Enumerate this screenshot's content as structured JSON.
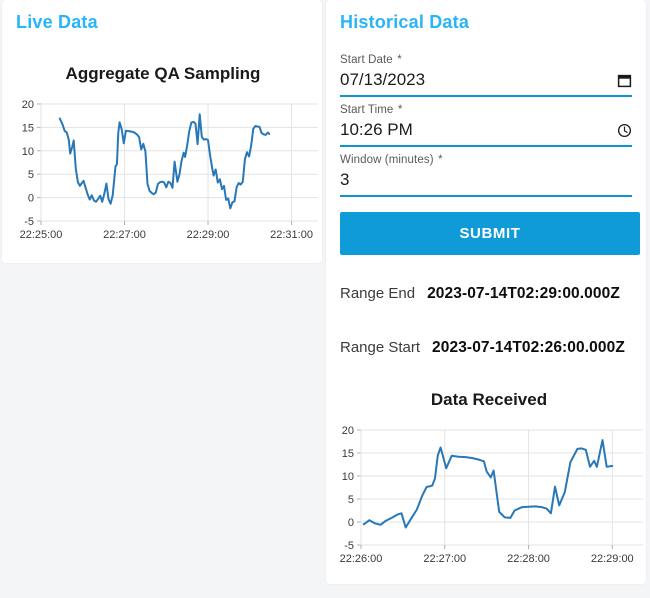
{
  "colors": {
    "accent": "#29b5f6",
    "primary_button": "#0f9bd7",
    "input_underline": "#0f93d2",
    "line": "#2878b8",
    "grid": "#e3e3e3",
    "tick": "#b0b0b0",
    "tick_label": "#3a3a3a"
  },
  "live_panel": {
    "header": "Live Data"
  },
  "historical_panel": {
    "header": "Historical Data",
    "fields": [
      {
        "label": "Start Date",
        "required_mark": "*",
        "value": "07/13/2023",
        "icon": "calendar-icon"
      },
      {
        "label": "Start Time",
        "required_mark": "*",
        "value": "10:26 PM",
        "icon": "clock-icon"
      },
      {
        "label": "Window (minutes)",
        "required_mark": "*",
        "value": "3",
        "icon": null
      }
    ],
    "submit_label": "SUBMIT",
    "results": [
      {
        "label": "Range End",
        "value": "2023-07-14T02:29:00.000Z"
      },
      {
        "label": "Range Start",
        "value": "2023-07-14T02:26:00.000Z"
      }
    ]
  },
  "chart_data": [
    {
      "type": "line",
      "title": "Aggregate QA Sampling",
      "xlabel": "",
      "ylabel": "",
      "grid": true,
      "line_color": "#2878b8",
      "ylim": [
        -5,
        20
      ],
      "yticks": [
        20,
        15,
        10,
        5,
        0,
        -5
      ],
      "x_domain_seconds": [
        0,
        398
      ],
      "x_origin_time": "22:25:00",
      "xticks": [
        {
          "pos": 0,
          "label": "22:25:00"
        },
        {
          "pos": 120,
          "label": "22:27:00"
        },
        {
          "pos": 240,
          "label": "22:29:00"
        },
        {
          "pos": 360,
          "label": "22:31:00"
        }
      ],
      "points": [
        [
          27,
          16.9
        ],
        [
          31,
          15.6
        ],
        [
          34,
          14.2
        ],
        [
          37,
          13.9
        ],
        [
          40,
          12.3
        ],
        [
          42,
          9.4
        ],
        [
          45,
          10.9
        ],
        [
          47,
          12.2
        ],
        [
          50,
          6.2
        ],
        [
          53,
          3.3
        ],
        [
          56,
          2.5
        ],
        [
          58,
          3.0
        ],
        [
          61,
          3.6
        ],
        [
          64,
          2.2
        ],
        [
          67,
          0.7
        ],
        [
          70,
          -0.4
        ],
        [
          73,
          0.5
        ],
        [
          76,
          -0.6
        ],
        [
          79,
          -0.9
        ],
        [
          82,
          -0.3
        ],
        [
          85,
          0.4
        ],
        [
          88,
          -0.9
        ],
        [
          91,
          0.8
        ],
        [
          94,
          3.0
        ],
        [
          97,
          -0.3
        ],
        [
          100,
          -1.3
        ],
        [
          103,
          0.5
        ],
        [
          105,
          3.6
        ],
        [
          107,
          6.7
        ],
        [
          109,
          7.1
        ],
        [
          111,
          13.9
        ],
        [
          113,
          16.1
        ],
        [
          116,
          14.6
        ],
        [
          119,
          11.6
        ],
        [
          122,
          14.3
        ],
        [
          126,
          14.2
        ],
        [
          130,
          14.1
        ],
        [
          134,
          13.9
        ],
        [
          138,
          13.5
        ],
        [
          141,
          12.9
        ],
        [
          144,
          10.3
        ],
        [
          147,
          11.5
        ],
        [
          150,
          9.9
        ],
        [
          153,
          2.9
        ],
        [
          156,
          1.4
        ],
        [
          159,
          1.0
        ],
        [
          162,
          0.7
        ],
        [
          165,
          1.1
        ],
        [
          168,
          2.9
        ],
        [
          171,
          3.3
        ],
        [
          174,
          3.4
        ],
        [
          177,
          3.2
        ],
        [
          180,
          2.2
        ],
        [
          183,
          3.4
        ],
        [
          186,
          3.1
        ],
        [
          189,
          2.1
        ],
        [
          192,
          7.7
        ],
        [
          196,
          3.4
        ],
        [
          199,
          5.0
        ],
        [
          202,
          7.9
        ],
        [
          205,
          9.6
        ],
        [
          207,
          8.7
        ],
        [
          210,
          11.2
        ],
        [
          213,
          14.1
        ],
        [
          216,
          16.0
        ],
        [
          219,
          16.2
        ],
        [
          222,
          15.8
        ],
        [
          225,
          11.4
        ],
        [
          228,
          17.8
        ],
        [
          231,
          13.0
        ],
        [
          234,
          12.4
        ],
        [
          237,
          12.5
        ],
        [
          240,
          12.3
        ],
        [
          243,
          9.0
        ],
        [
          246,
          6.3
        ],
        [
          248,
          4.7
        ],
        [
          251,
          6.0
        ],
        [
          254,
          3.2
        ],
        [
          257,
          3.9
        ],
        [
          260,
          1.8
        ],
        [
          263,
          2.5
        ],
        [
          266,
          -0.5
        ],
        [
          269,
          -0.2
        ],
        [
          272,
          -2.3
        ],
        [
          275,
          -1.0
        ],
        [
          278,
          -0.8
        ],
        [
          281,
          2.2
        ],
        [
          284,
          3.1
        ],
        [
          287,
          2.8
        ],
        [
          290,
          3.4
        ],
        [
          293,
          8.2
        ],
        [
          296,
          9.7
        ],
        [
          299,
          8.8
        ],
        [
          302,
          11.2
        ],
        [
          305,
          14.7
        ],
        [
          308,
          15.3
        ],
        [
          311,
          15.2
        ],
        [
          314,
          15.1
        ],
        [
          317,
          13.8
        ],
        [
          320,
          13.5
        ],
        [
          323,
          13.4
        ],
        [
          326,
          13.9
        ],
        [
          328,
          13.6
        ]
      ]
    },
    {
      "type": "line",
      "title": "Data Received",
      "xlabel": "",
      "ylabel": "",
      "grid": true,
      "line_color": "#2878b8",
      "ylim": [
        -5,
        20
      ],
      "yticks": [
        20,
        15,
        10,
        5,
        0,
        -5
      ],
      "x_domain_seconds": [
        0,
        202
      ],
      "x_origin_time": "22:26:00",
      "xticks": [
        {
          "pos": 0,
          "label": "22:26:00"
        },
        {
          "pos": 60,
          "label": "22:27:00"
        },
        {
          "pos": 120,
          "label": "22:28:00"
        },
        {
          "pos": 180,
          "label": "22:29:00"
        }
      ],
      "points": [
        [
          2,
          -0.5
        ],
        [
          6,
          0.4
        ],
        [
          10,
          -0.3
        ],
        [
          14,
          -0.6
        ],
        [
          18,
          0.3
        ],
        [
          22,
          0.9
        ],
        [
          26,
          1.6
        ],
        [
          29,
          1.9
        ],
        [
          32,
          -1.2
        ],
        [
          36,
          0.8
        ],
        [
          40,
          2.7
        ],
        [
          44,
          5.8
        ],
        [
          47,
          7.6
        ],
        [
          51,
          7.9
        ],
        [
          53,
          9.5
        ],
        [
          55,
          14.5
        ],
        [
          57,
          16.2
        ],
        [
          61,
          11.7
        ],
        [
          65,
          14.4
        ],
        [
          70,
          14.2
        ],
        [
          75,
          14.1
        ],
        [
          80,
          13.9
        ],
        [
          85,
          13.5
        ],
        [
          88,
          13.2
        ],
        [
          90,
          11.0
        ],
        [
          93,
          9.7
        ],
        [
          95,
          11.2
        ],
        [
          99,
          2.2
        ],
        [
          103,
          1.0
        ],
        [
          107,
          0.9
        ],
        [
          110,
          2.5
        ],
        [
          115,
          3.2
        ],
        [
          120,
          3.3
        ],
        [
          125,
          3.4
        ],
        [
          130,
          3.2
        ],
        [
          133,
          2.9
        ],
        [
          136,
          1.9
        ],
        [
          139,
          7.7
        ],
        [
          142,
          3.6
        ],
        [
          146,
          6.5
        ],
        [
          150,
          13.0
        ],
        [
          155,
          15.9
        ],
        [
          158,
          16.0
        ],
        [
          161,
          15.7
        ],
        [
          164,
          12.0
        ],
        [
          167,
          13.3
        ],
        [
          169,
          12.0
        ],
        [
          173,
          17.8
        ],
        [
          176,
          12.0
        ],
        [
          180,
          12.2
        ]
      ]
    }
  ]
}
